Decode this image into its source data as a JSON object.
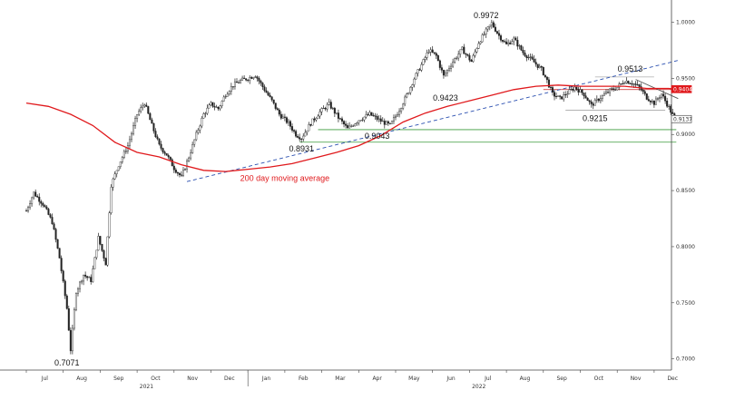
{
  "chart_data": {
    "type": "candlestick",
    "y_ticks": [
      "0.7000",
      "0.7500",
      "0.8000",
      "0.8500",
      "0.9000",
      "0.9500",
      "1.0000"
    ],
    "ylim": [
      0.69,
      1.015
    ],
    "x_month_labels": [
      "Jul",
      "Aug",
      "Sep",
      "Oct",
      "Nov",
      "Dec",
      "Jan",
      "Feb",
      "Mar",
      "Apr",
      "May",
      "Jun",
      "Jul",
      "Aug",
      "Sep",
      "Oct",
      "Nov",
      "Dec"
    ],
    "year_labels": [
      {
        "label": "2021",
        "month_index": 3
      },
      {
        "label": "2022",
        "month_index": 12
      }
    ],
    "annotations": [
      {
        "text": "0.7071",
        "month": 1.1,
        "value": 0.7071
      },
      {
        "text": "0.8931",
        "month": 7.45,
        "value": 0.8931
      },
      {
        "text": "0.9043",
        "month": 9.5,
        "value": 0.9043
      },
      {
        "text": "0.9423",
        "month": 11.35,
        "value": 0.9423
      },
      {
        "text": "0.9972",
        "month": 12.45,
        "value": 0.9972
      },
      {
        "text": "0.9513",
        "month": 16.35,
        "value": 0.9513
      },
      {
        "text": "0.9215",
        "month": 15.4,
        "value": 0.9215
      }
    ],
    "ma_label": "200 day moving average",
    "price_tags": [
      {
        "text": "0.9404",
        "value": 0.9404,
        "color": "#e0191c"
      },
      {
        "text": "0.9137",
        "value": 0.9137,
        "color": "#555555"
      }
    ],
    "horizontal_levels": [
      {
        "value": 0.9043,
        "color": "#3a9a3a",
        "from_month": 7.9,
        "to_month": 17.6
      },
      {
        "value": 0.8931,
        "color": "#3a9a3a",
        "from_month": 7.4,
        "to_month": 17.6
      },
      {
        "value": 0.94,
        "color": "#cc2222",
        "from_month": 14.0,
        "to_month": 17.6
      },
      {
        "value": 0.9215,
        "color": "#999999",
        "from_month": 14.6,
        "to_month": 17.3
      },
      {
        "value": 0.9513,
        "color": "#bbbbbb",
        "from_month": 15.4,
        "to_month": 17.0
      }
    ],
    "trend_lines": [
      {
        "from": [
          4.35,
          0.858
        ],
        "to": [
          17.65,
          0.966
        ],
        "color": "#2a4fb0",
        "dash": true
      },
      {
        "from": [
          16.5,
          0.949
        ],
        "to": [
          17.65,
          0.932
        ],
        "color": "#555555",
        "dash": false
      }
    ],
    "price_path": [
      [
        0.0,
        0.832
      ],
      [
        0.2,
        0.848
      ],
      [
        0.45,
        0.838
      ],
      [
        0.7,
        0.822
      ],
      [
        0.9,
        0.79
      ],
      [
        1.1,
        0.745
      ],
      [
        1.2,
        0.708
      ],
      [
        1.35,
        0.76
      ],
      [
        1.55,
        0.775
      ],
      [
        1.75,
        0.77
      ],
      [
        1.95,
        0.808
      ],
      [
        2.15,
        0.785
      ],
      [
        2.3,
        0.855
      ],
      [
        2.5,
        0.873
      ],
      [
        2.75,
        0.89
      ],
      [
        3.0,
        0.918
      ],
      [
        3.2,
        0.928
      ],
      [
        3.4,
        0.908
      ],
      [
        3.6,
        0.89
      ],
      [
        3.8,
        0.882
      ],
      [
        4.0,
        0.87
      ],
      [
        4.2,
        0.862
      ],
      [
        4.4,
        0.88
      ],
      [
        4.6,
        0.9
      ],
      [
        4.8,
        0.918
      ],
      [
        5.0,
        0.927
      ],
      [
        5.2,
        0.923
      ],
      [
        5.4,
        0.936
      ],
      [
        5.6,
        0.944
      ],
      [
        5.8,
        0.948
      ],
      [
        6.0,
        0.95
      ],
      [
        6.2,
        0.953
      ],
      [
        6.45,
        0.94
      ],
      [
        6.65,
        0.93
      ],
      [
        6.85,
        0.918
      ],
      [
        7.1,
        0.91
      ],
      [
        7.3,
        0.9
      ],
      [
        7.45,
        0.897
      ],
      [
        7.7,
        0.91
      ],
      [
        7.95,
        0.92
      ],
      [
        8.2,
        0.927
      ],
      [
        8.45,
        0.915
      ],
      [
        8.7,
        0.905
      ],
      [
        9.0,
        0.913
      ],
      [
        9.3,
        0.918
      ],
      [
        9.6,
        0.912
      ],
      [
        9.85,
        0.908
      ],
      [
        10.1,
        0.922
      ],
      [
        10.3,
        0.935
      ],
      [
        10.5,
        0.95
      ],
      [
        10.7,
        0.962
      ],
      [
        10.9,
        0.975
      ],
      [
        11.1,
        0.97
      ],
      [
        11.3,
        0.952
      ],
      [
        11.55,
        0.965
      ],
      [
        11.8,
        0.976
      ],
      [
        12.05,
        0.965
      ],
      [
        12.25,
        0.982
      ],
      [
        12.45,
        0.992
      ],
      [
        12.6,
        0.999
      ],
      [
        12.8,
        0.988
      ],
      [
        13.0,
        0.98
      ],
      [
        13.2,
        0.985
      ],
      [
        13.45,
        0.973
      ],
      [
        13.7,
        0.966
      ],
      [
        13.95,
        0.958
      ],
      [
        14.1,
        0.948
      ],
      [
        14.25,
        0.936
      ],
      [
        14.45,
        0.932
      ],
      [
        14.65,
        0.937
      ],
      [
        14.85,
        0.942
      ],
      [
        15.1,
        0.936
      ],
      [
        15.3,
        0.926
      ],
      [
        15.55,
        0.933
      ],
      [
        15.8,
        0.939
      ],
      [
        16.0,
        0.942
      ],
      [
        16.2,
        0.948
      ],
      [
        16.4,
        0.946
      ],
      [
        16.6,
        0.942
      ],
      [
        16.8,
        0.933
      ],
      [
        17.0,
        0.928
      ],
      [
        17.2,
        0.936
      ],
      [
        17.4,
        0.924
      ],
      [
        17.55,
        0.914
      ]
    ],
    "ma_path": [
      [
        0.0,
        0.928
      ],
      [
        0.6,
        0.925
      ],
      [
        1.2,
        0.918
      ],
      [
        1.8,
        0.908
      ],
      [
        2.4,
        0.893
      ],
      [
        3.0,
        0.884
      ],
      [
        3.6,
        0.88
      ],
      [
        4.2,
        0.873
      ],
      [
        4.8,
        0.868
      ],
      [
        5.4,
        0.867
      ],
      [
        6.0,
        0.869
      ],
      [
        6.6,
        0.871
      ],
      [
        7.2,
        0.874
      ],
      [
        7.8,
        0.879
      ],
      [
        8.4,
        0.884
      ],
      [
        9.0,
        0.89
      ],
      [
        9.6,
        0.899
      ],
      [
        10.2,
        0.911
      ],
      [
        10.8,
        0.919
      ],
      [
        11.4,
        0.925
      ],
      [
        12.0,
        0.93
      ],
      [
        12.6,
        0.935
      ],
      [
        13.2,
        0.94
      ],
      [
        13.8,
        0.943
      ],
      [
        14.4,
        0.944
      ],
      [
        15.0,
        0.943
      ],
      [
        15.6,
        0.943
      ],
      [
        16.2,
        0.943
      ],
      [
        16.8,
        0.941
      ],
      [
        17.4,
        0.941
      ],
      [
        17.65,
        0.94
      ]
    ]
  }
}
